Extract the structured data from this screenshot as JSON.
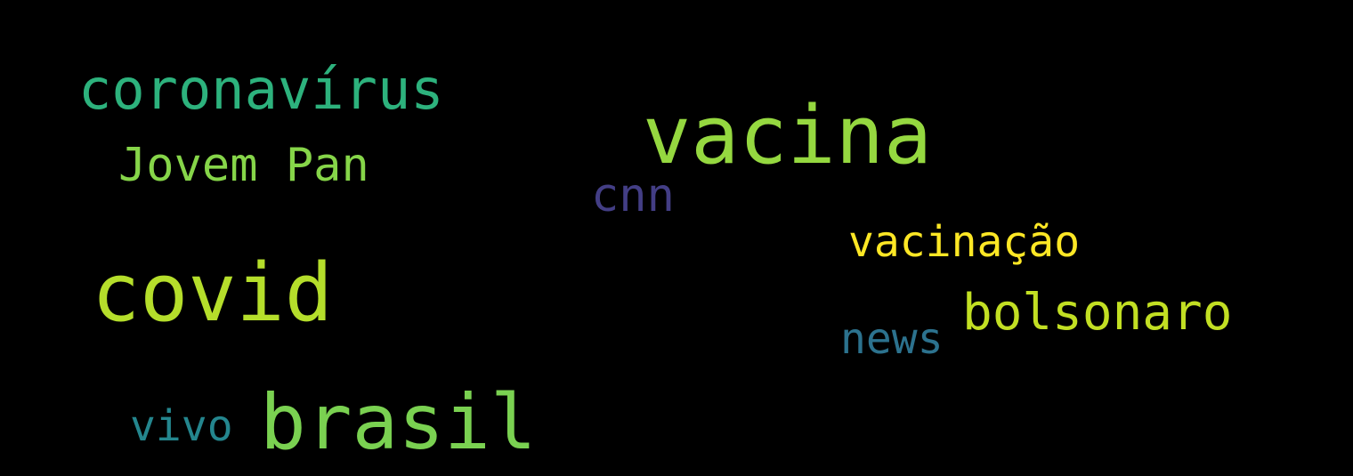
{
  "words": [
    {
      "text": "coronavírus",
      "color": "#2db27d"
    },
    {
      "text": "vacina",
      "color": "#95d840"
    },
    {
      "text": "Jovem Pan",
      "color": "#86d549"
    },
    {
      "text": "cnn",
      "color": "#433e85"
    },
    {
      "text": "vacinação",
      "color": "#fde725"
    },
    {
      "text": "covid",
      "color": "#b5de2b"
    },
    {
      "text": "bolsonaro",
      "color": "#c2df23"
    },
    {
      "text": "news",
      "color": "#2c728e"
    },
    {
      "text": "vivo",
      "color": "#24868e"
    },
    {
      "text": "brasil",
      "color": "#7ad151"
    }
  ],
  "background": "#000000"
}
